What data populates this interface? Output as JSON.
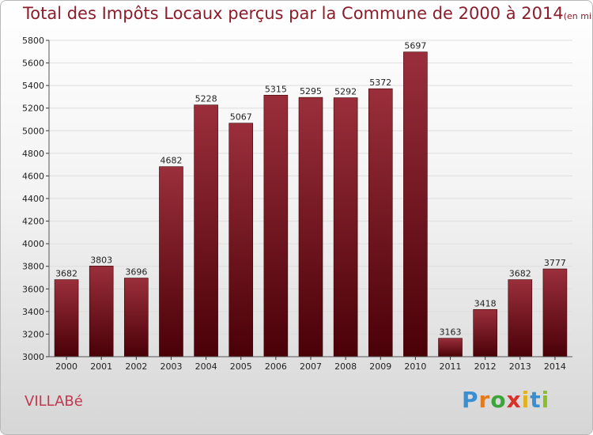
{
  "title": "Total des Impôts Locaux perçus par la Commune de 2000 à 2014",
  "unit": "(en milliers d'€)",
  "commune": "VILLABé",
  "brand": {
    "name": "Proxiti",
    "letters": [
      "P",
      "r",
      "o",
      "x",
      "i",
      "t",
      "i"
    ],
    "colors": [
      "#3a8fd0",
      "#e27b1d",
      "#3aa63a",
      "#d8312a",
      "#e2b21d",
      "#3a8fd0",
      "#8bbf2a"
    ]
  },
  "colors": {
    "bar_top": "#9a2f3b",
    "bar_bottom": "#4a0007",
    "bar_edge": "#3a0005",
    "title": "#8b1d2b",
    "commune": "#c0394f"
  },
  "chart_data": {
    "type": "bar",
    "title": "Total des Impôts Locaux perçus par la Commune de 2000 à 2014",
    "xlabel": "",
    "ylabel": "",
    "categories": [
      "2000",
      "2001",
      "2002",
      "2003",
      "2004",
      "2005",
      "2006",
      "2007",
      "2008",
      "2009",
      "2010",
      "2011",
      "2012",
      "2013",
      "2014"
    ],
    "values": [
      3682,
      3803,
      3696,
      4682,
      5228,
      5067,
      5315,
      5295,
      5292,
      5372,
      5697,
      3163,
      3418,
      3682,
      3777
    ],
    "ylim": [
      3000,
      5800
    ],
    "yticks": [
      3000,
      3200,
      3400,
      3600,
      3800,
      4000,
      4200,
      4400,
      4600,
      4800,
      5000,
      5200,
      5400,
      5600,
      5800
    ],
    "grid": true
  }
}
